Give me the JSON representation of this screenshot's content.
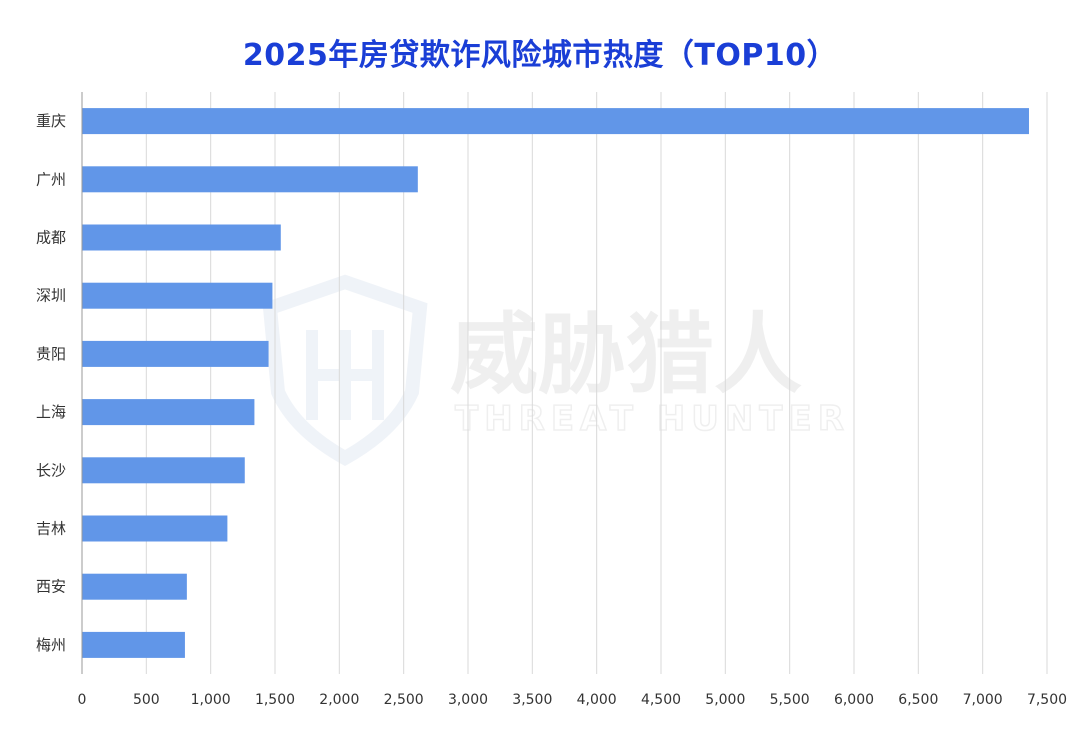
{
  "chart_data": {
    "type": "bar",
    "orientation": "horizontal",
    "title": "2025年房贷欺诈风险城市热度（TOP10）",
    "categories": [
      "重庆",
      "广州",
      "成都",
      "深圳",
      "贵阳",
      "上海",
      "长沙",
      "吉林",
      "西安",
      "梅州"
    ],
    "values": [
      7360,
      2610,
      1545,
      1480,
      1450,
      1340,
      1265,
      1130,
      815,
      800
    ],
    "xlim": [
      0,
      7500
    ],
    "x_ticks": [
      0,
      500,
      1000,
      1500,
      2000,
      2500,
      3000,
      3500,
      4000,
      4500,
      5000,
      5500,
      6000,
      6500,
      7000,
      7500
    ],
    "x_tick_labels": [
      "0",
      "500",
      "1,000",
      "1,500",
      "2,000",
      "2,500",
      "3,000",
      "3,500",
      "4,000",
      "4,500",
      "5,000",
      "5,500",
      "6,000",
      "6,500",
      "7,000",
      "7,500"
    ],
    "grid": "vertical",
    "bar_color": "#6196e8",
    "title_color": "#1a3ed6"
  },
  "watermark": {
    "cn": "威胁猎人",
    "en": "THREAT HUNTER"
  }
}
